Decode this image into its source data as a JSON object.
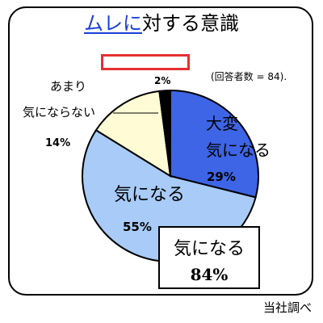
{
  "chart_data": {
    "type": "pie",
    "title_highlight": "ムレに",
    "title_rest": "対する意識",
    "respondents": "(回答者数 = 84).",
    "slices": [
      {
        "label": "大変\n気になる",
        "value": 29,
        "value_label": "29%",
        "color": "#3d65e6"
      },
      {
        "label": "気になる",
        "value": 55,
        "value_label": "55%",
        "color": "#a8cbf7"
      },
      {
        "label": "あまり\n気にならない",
        "value": 14,
        "value_label": "14%",
        "color": "#fffbd5"
      },
      {
        "label": "",
        "value": 2,
        "value_label": "2%",
        "color": "#000000"
      }
    ],
    "summary": {
      "label": "気になる",
      "value": 84,
      "value_label": "84%"
    },
    "source": "当社調べ"
  }
}
